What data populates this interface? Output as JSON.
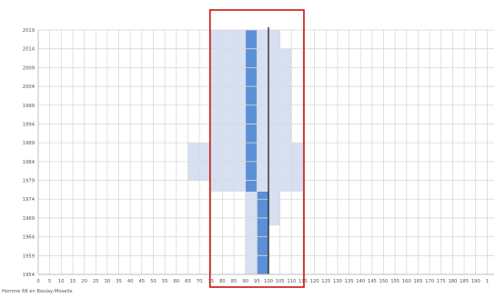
{
  "chart_data": {
    "type": "bar",
    "title": "",
    "xlabel": "",
    "ylabel": "",
    "xlim": [
      0,
      193
    ],
    "ylim": [
      1954,
      2019
    ],
    "grid": true,
    "x_ticks": [
      "0",
      "5",
      "10",
      "15",
      "20",
      "25",
      "30",
      "35",
      "40",
      "45",
      "50",
      "55",
      "60",
      "65",
      "70",
      "75",
      "80",
      "85",
      "90",
      "95",
      "100",
      "105",
      "110",
      "115",
      "120",
      "125",
      "130",
      "135",
      "140",
      "145",
      "150",
      "155",
      "160",
      "165",
      "170",
      "175",
      "180",
      "185",
      "190",
      "1"
    ],
    "y_ticks": [
      "2019",
      "2014",
      "2009",
      "2004",
      "1999",
      "1994",
      "1989",
      "1984",
      "1979",
      "1974",
      "1969",
      "1964",
      "1959",
      "1954"
    ],
    "range_band": {
      "color": "#d6e0f2",
      "rows": [
        {
          "y_from": 2014,
          "y_to": 2019,
          "x_min": 75,
          "x_max": 105
        },
        {
          "y_from": 1989,
          "y_to": 2014,
          "x_min": 75,
          "x_max": 110
        },
        {
          "y_from": 1979,
          "y_to": 1989,
          "x_min": 65,
          "x_max": 115
        },
        {
          "y_from": 1976,
          "y_to": 1979,
          "x_min": 75,
          "x_max": 115
        },
        {
          "y_from": 1967,
          "y_to": 1976,
          "x_min": 90,
          "x_max": 105
        },
        {
          "y_from": 1954,
          "y_to": 1967,
          "x_min": 90,
          "x_max": 100
        }
      ]
    },
    "core_band": {
      "color": "#5b8fd6",
      "rows": [
        {
          "y_from": 1976,
          "y_to": 2019,
          "x_min": 90,
          "x_max": 95
        },
        {
          "y_from": 1954,
          "y_to": 1976,
          "x_min": 95,
          "x_max": 100
        }
      ]
    },
    "reference_line": {
      "x": 100,
      "color": "#222222"
    },
    "highlight_box": {
      "x_min": 75,
      "x_max": 115,
      "color": "#cc1111"
    },
    "footnote": "Homme 66 en Boulay-Moselle"
  }
}
